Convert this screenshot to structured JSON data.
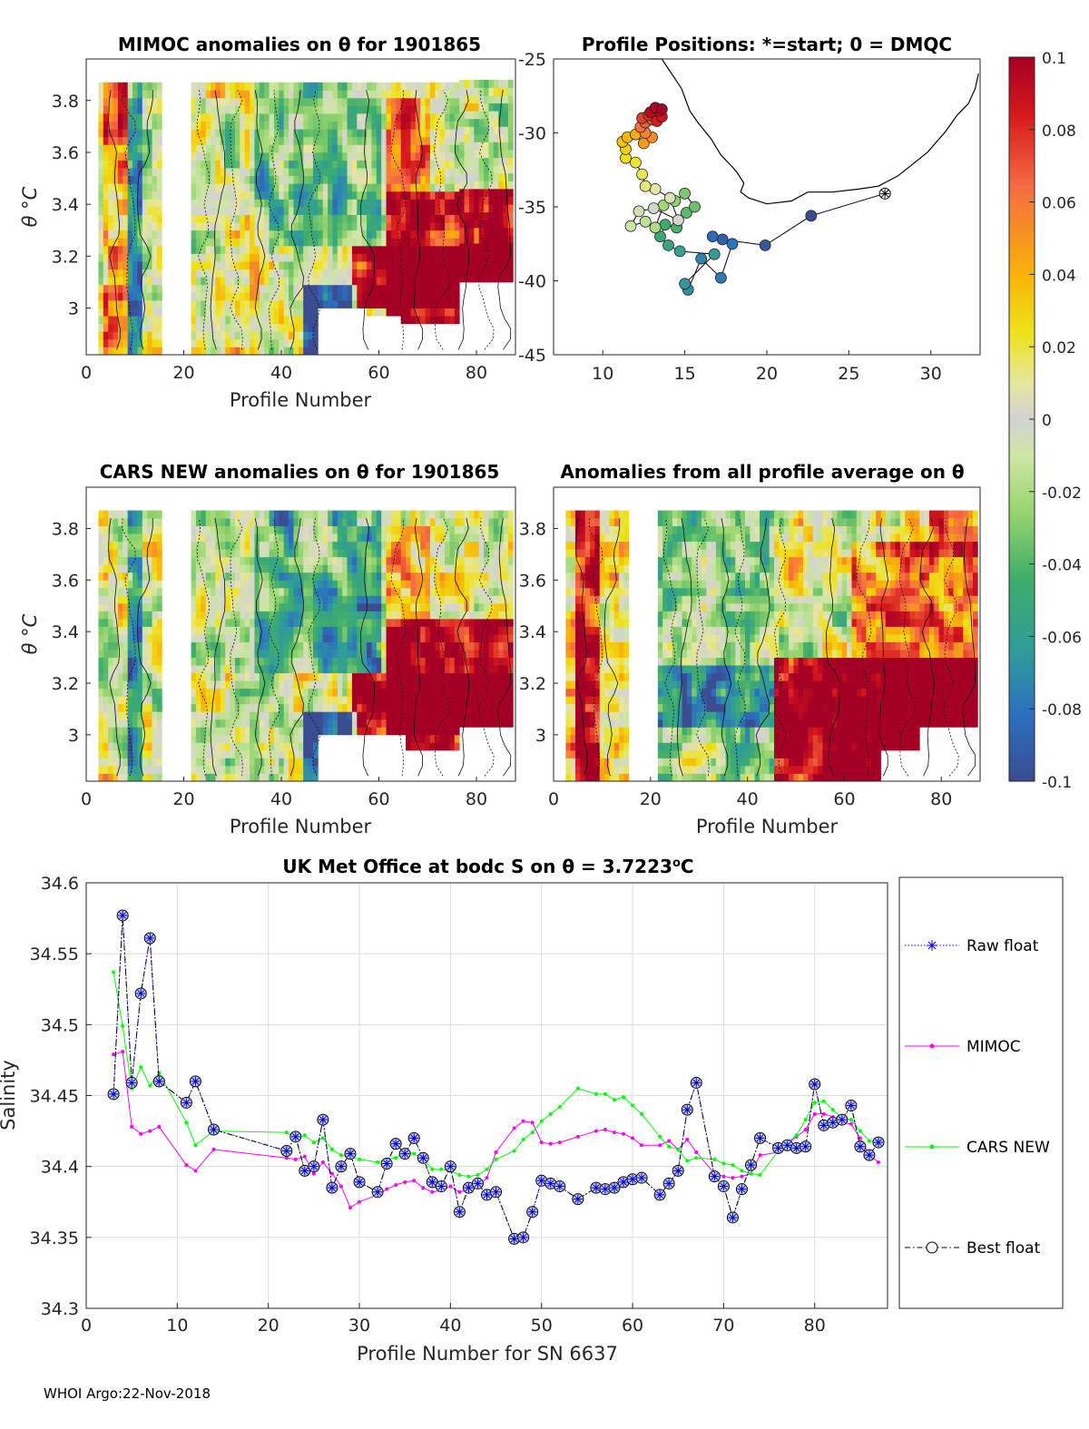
{
  "footer": "WHOI Argo:22-Nov-2018",
  "panels": {
    "mimoc": {
      "title": "MIMOC anomalies on θ  for 1901865",
      "xlabel": "Profile Number",
      "ylabel": "θ °C"
    },
    "positions": {
      "title": "Profile Positions: *=start; 0 = DMQC"
    },
    "cars": {
      "title": "CARS NEW anomalies on θ for 1901865",
      "xlabel": "Profile Number",
      "ylabel": "θ °C"
    },
    "allavg": {
      "title": "Anomalies from all profile average on θ",
      "xlabel": "Profile Number"
    },
    "colorbar": {
      "ticks": [
        "0.1",
        "0.08",
        "0.06",
        "0.04",
        "0.02",
        "0",
        "-0.02",
        "-0.04",
        "-0.06",
        "-0.08",
        "-0.1"
      ]
    }
  },
  "chart_data": [
    {
      "id": "mimoc",
      "type": "heatmap",
      "title": "MIMOC anomalies on θ  for 1901865",
      "xlabel": "Profile Number",
      "ylabel": "θ °C",
      "xlim": [
        0,
        88
      ],
      "ylim": [
        2.82,
        3.96
      ],
      "xticks": [
        0,
        20,
        40,
        60,
        80
      ],
      "yticks": [
        3,
        3.2,
        3.4,
        3.6,
        3.8
      ],
      "ytick_labels": [
        "3",
        "3.2",
        "3.4",
        "3.6",
        "3.8"
      ],
      "color_range": [
        -0.1,
        0.1
      ]
    },
    {
      "id": "positions",
      "type": "scatter",
      "title": "Profile Positions: *=start; 0 = DMQC",
      "xlim": [
        7,
        33
      ],
      "ylim": [
        -45,
        -25
      ],
      "xticks": [
        10,
        15,
        20,
        25,
        30
      ],
      "yticks": [
        -25,
        -30,
        -35,
        -40,
        -45
      ],
      "ytick_labels": [
        "-25",
        "-30",
        "-35",
        "-40",
        "-45"
      ],
      "start": [
        27.2,
        -34.1
      ],
      "points": [
        [
          22.7,
          -35.6
        ],
        [
          19.9,
          -37.6
        ],
        [
          17.3,
          -37.2
        ],
        [
          16.7,
          -37.0
        ],
        [
          17.9,
          -37.5
        ],
        [
          17.2,
          -39.8
        ],
        [
          16.0,
          -38.5
        ],
        [
          15.2,
          -40.6
        ],
        [
          15.0,
          -40.2
        ],
        [
          16.8,
          -38.2
        ],
        [
          14.7,
          -38.0
        ],
        [
          14.0,
          -37.6
        ],
        [
          13.5,
          -37.0
        ],
        [
          13.8,
          -36.2
        ],
        [
          14.5,
          -36.4
        ],
        [
          15.1,
          -35.4
        ],
        [
          15.6,
          -35.0
        ],
        [
          15.0,
          -34.1
        ],
        [
          14.4,
          -34.6
        ],
        [
          13.7,
          -34.9
        ],
        [
          13.2,
          -36.4
        ],
        [
          12.6,
          -36.0
        ],
        [
          11.7,
          -36.3
        ],
        [
          12.2,
          -35.3
        ],
        [
          13.1,
          -35.1
        ],
        [
          14.6,
          -35.9
        ],
        [
          14.1,
          -34.4
        ],
        [
          13.2,
          -33.8
        ],
        [
          12.6,
          -33.6
        ],
        [
          12.4,
          -32.8
        ],
        [
          12.0,
          -32.0
        ],
        [
          11.4,
          -31.7
        ],
        [
          11.4,
          -31.1
        ],
        [
          11.2,
          -30.6
        ],
        [
          11.5,
          -30.3
        ],
        [
          12.0,
          -30.1
        ],
        [
          12.5,
          -30.7
        ],
        [
          13.0,
          -30.3
        ],
        [
          12.6,
          -30.0
        ],
        [
          12.3,
          -29.6
        ],
        [
          12.6,
          -29.3
        ],
        [
          13.0,
          -29.1
        ],
        [
          12.4,
          -29.0
        ],
        [
          12.8,
          -28.8
        ],
        [
          13.3,
          -29.2
        ],
        [
          13.6,
          -28.9
        ],
        [
          13.4,
          -28.5
        ],
        [
          12.9,
          -28.6
        ],
        [
          13.2,
          -28.3
        ],
        [
          13.6,
          -28.4
        ]
      ],
      "coastline": [
        [
          12.8,
          -22.0
        ],
        [
          13.6,
          -25.0
        ],
        [
          14.8,
          -27.0
        ],
        [
          15.3,
          -28.5
        ],
        [
          15.8,
          -29.3
        ],
        [
          16.6,
          -30.4
        ],
        [
          17.2,
          -31.5
        ],
        [
          17.9,
          -32.3
        ],
        [
          18.2,
          -32.7
        ],
        [
          18.6,
          -33.4
        ],
        [
          18.4,
          -34.0
        ],
        [
          18.9,
          -34.4
        ],
        [
          20.0,
          -34.8
        ],
        [
          21.5,
          -34.6
        ],
        [
          22.5,
          -34.0
        ],
        [
          24.0,
          -34.0
        ],
        [
          25.6,
          -33.8
        ],
        [
          26.8,
          -33.6
        ],
        [
          28.0,
          -32.9
        ],
        [
          29.8,
          -31.3
        ],
        [
          30.9,
          -29.9
        ],
        [
          31.6,
          -28.8
        ],
        [
          32.3,
          -28.0
        ],
        [
          32.7,
          -27.0
        ],
        [
          32.9,
          -26.0
        ]
      ]
    },
    {
      "id": "cars",
      "type": "heatmap",
      "title": "CARS NEW anomalies on θ for 1901865",
      "xlabel": "Profile Number",
      "ylabel": "θ °C",
      "xlim": [
        0,
        88
      ],
      "ylim": [
        2.82,
        3.96
      ],
      "xticks": [
        0,
        20,
        40,
        60,
        80
      ],
      "yticks": [
        3,
        3.2,
        3.4,
        3.6,
        3.8
      ],
      "ytick_labels": [
        "3",
        "3.2",
        "3.4",
        "3.6",
        "3.8"
      ],
      "color_range": [
        -0.1,
        0.1
      ]
    },
    {
      "id": "allavg",
      "type": "heatmap",
      "title": "Anomalies from all profile average on θ",
      "xlabel": "Profile Number",
      "xlim": [
        0,
        88
      ],
      "ylim": [
        2.82,
        3.96
      ],
      "xticks": [
        0,
        20,
        40,
        60,
        80
      ],
      "yticks": [
        3,
        3.2,
        3.4,
        3.6,
        3.8
      ],
      "ytick_labels": [
        "3",
        "3.2",
        "3.4",
        "3.6",
        "3.8"
      ],
      "color_range": [
        -0.1,
        0.1
      ]
    },
    {
      "id": "salinity",
      "type": "line",
      "title": "UK Met Office at bodc S on θ = 3.7223",
      "title_superscript": "o",
      "title_unit": "C",
      "xlabel": "Profile Number for SN 6637",
      "ylabel": "Salinity",
      "xlim": [
        0,
        88
      ],
      "ylim": [
        34.3,
        34.6
      ],
      "xticks": [
        0,
        10,
        20,
        30,
        40,
        50,
        60,
        70,
        80
      ],
      "yticks": [
        34.3,
        34.35,
        34.4,
        34.45,
        34.5,
        34.55,
        34.6
      ],
      "ytick_labels": [
        "34.3",
        "34.35",
        "34.4",
        "34.45",
        "34.5",
        "34.55",
        "34.6"
      ],
      "legend": [
        "Raw float",
        "MIMOC",
        "CARS NEW",
        "Best float"
      ],
      "x": [
        3,
        4,
        5,
        6,
        7,
        8,
        11,
        12,
        14,
        22,
        23,
        24,
        25,
        26,
        27,
        28,
        29,
        30,
        32,
        33,
        34,
        35,
        36,
        37,
        38,
        39,
        40,
        41,
        42,
        43,
        44,
        45,
        47,
        48,
        49,
        50,
        51,
        52,
        54,
        56,
        57,
        58,
        59,
        60,
        61,
        63,
        64,
        65,
        66,
        67,
        69,
        70,
        71,
        72,
        73,
        74,
        76,
        77,
        78,
        79,
        80,
        81,
        82,
        83,
        84,
        85,
        86,
        87
      ],
      "series": [
        {
          "name": "Raw float",
          "color": "#0000ff",
          "values": [
            34.451,
            34.577,
            34.459,
            34.522,
            34.561,
            34.46,
            34.445,
            34.46,
            34.426,
            34.411,
            34.421,
            34.397,
            34.4,
            34.433,
            34.385,
            34.4,
            34.409,
            34.389,
            34.382,
            34.402,
            34.416,
            34.409,
            34.42,
            34.406,
            34.389,
            34.386,
            34.4,
            34.368,
            34.385,
            34.388,
            34.38,
            34.382,
            34.349,
            34.35,
            34.368,
            34.39,
            34.388,
            34.386,
            34.377,
            34.385,
            34.384,
            34.385,
            34.389,
            34.391,
            34.392,
            34.38,
            34.388,
            34.397,
            34.44,
            34.459,
            34.393,
            34.386,
            34.364,
            34.384,
            34.401,
            34.42,
            34.413,
            34.415,
            34.413,
            34.414,
            34.458,
            34.429,
            34.431,
            34.433,
            34.443,
            34.414,
            34.408,
            34.417
          ]
        },
        {
          "name": "MIMOC",
          "color": "#ff00ff",
          "values": [
            34.479,
            34.481,
            34.428,
            34.423,
            34.425,
            34.428,
            34.401,
            34.397,
            34.412,
            34.406,
            34.405,
            34.407,
            34.395,
            34.403,
            34.395,
            34.386,
            34.371,
            34.375,
            34.38,
            34.384,
            34.387,
            34.389,
            34.39,
            34.385,
            34.382,
            34.383,
            34.386,
            34.382,
            34.384,
            34.386,
            34.392,
            34.41,
            34.427,
            34.432,
            34.431,
            34.417,
            34.416,
            34.417,
            34.421,
            34.425,
            34.426,
            34.424,
            34.423,
            34.42,
            34.415,
            34.415,
            34.418,
            34.412,
            34.419,
            34.41,
            34.395,
            34.393,
            34.392,
            34.393,
            34.395,
            34.408,
            34.41,
            34.416,
            34.421,
            34.426,
            34.437,
            34.437,
            34.435,
            34.431,
            34.43,
            34.42,
            34.408,
            34.403
          ]
        },
        {
          "name": "CARS NEW",
          "color": "#00ff00",
          "values": [
            34.537,
            34.499,
            34.455,
            34.47,
            34.457,
            34.466,
            34.431,
            34.415,
            34.425,
            34.424,
            34.42,
            34.422,
            34.417,
            34.42,
            34.412,
            34.408,
            34.407,
            34.405,
            34.403,
            34.405,
            34.406,
            34.41,
            34.409,
            34.405,
            34.398,
            34.398,
            34.397,
            34.394,
            34.393,
            34.394,
            34.398,
            34.405,
            34.411,
            34.419,
            34.424,
            34.432,
            34.437,
            34.442,
            34.455,
            34.451,
            34.451,
            34.447,
            34.449,
            34.443,
            34.437,
            34.421,
            34.414,
            34.412,
            34.404,
            34.406,
            34.405,
            34.402,
            34.401,
            34.397,
            34.395,
            34.394,
            34.411,
            34.417,
            34.422,
            34.433,
            34.445,
            34.446,
            34.44,
            34.434,
            34.433,
            34.425,
            34.418,
            34.417
          ]
        },
        {
          "name": "Best float",
          "color": "#000000",
          "values": [
            34.451,
            34.577,
            34.459,
            34.522,
            34.561,
            34.46,
            34.445,
            34.46,
            34.426,
            34.411,
            34.421,
            34.397,
            34.4,
            34.433,
            34.385,
            34.4,
            34.409,
            34.389,
            34.382,
            34.402,
            34.416,
            34.409,
            34.42,
            34.406,
            34.389,
            34.386,
            34.4,
            34.368,
            34.385,
            34.388,
            34.38,
            34.382,
            34.349,
            34.35,
            34.368,
            34.39,
            34.388,
            34.386,
            34.377,
            34.385,
            34.384,
            34.385,
            34.389,
            34.391,
            34.392,
            34.38,
            34.388,
            34.397,
            34.44,
            34.459,
            34.393,
            34.386,
            34.364,
            34.384,
            34.401,
            34.42,
            34.413,
            34.415,
            34.413,
            34.414,
            34.458,
            34.429,
            34.431,
            34.433,
            34.443,
            34.414,
            34.408,
            34.417
          ]
        }
      ]
    }
  ]
}
